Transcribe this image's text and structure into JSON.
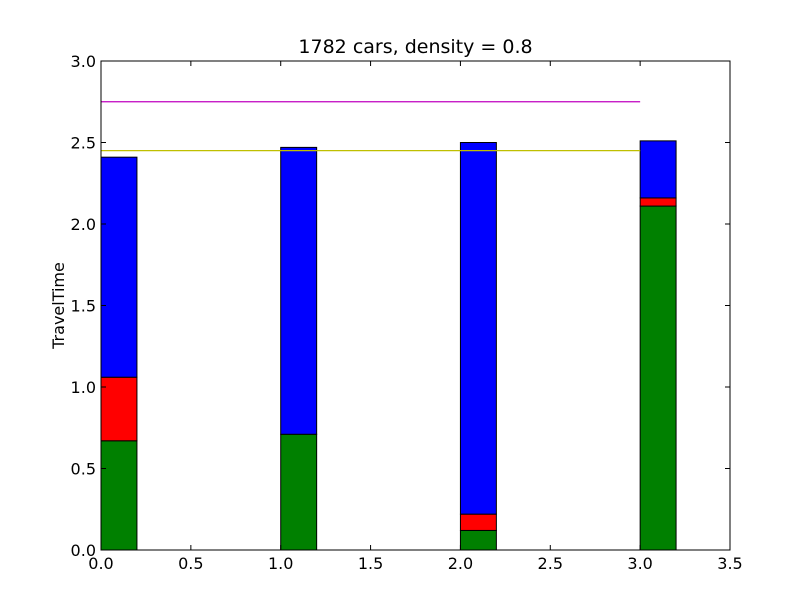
{
  "chart_data": {
    "type": "bar",
    "stacked": true,
    "title": "1782 cars, density = 0.8",
    "xlabel": "",
    "ylabel": "TravelTime",
    "xlim": [
      0.0,
      3.5
    ],
    "ylim": [
      0.0,
      3.0
    ],
    "xticks": [
      "0.0",
      "0.5",
      "1.0",
      "1.5",
      "2.0",
      "2.5",
      "3.0",
      "3.5"
    ],
    "yticks": [
      "0.0",
      "0.5",
      "1.0",
      "1.5",
      "2.0",
      "2.5",
      "3.0"
    ],
    "grid": false,
    "legend": "none",
    "bar_width": 0.2,
    "x": [
      0,
      1,
      2,
      3
    ],
    "series": [
      {
        "color": "#008000",
        "values": [
          0.67,
          0.71,
          0.12,
          2.11
        ]
      },
      {
        "color": "#ff0000",
        "values": [
          0.39,
          0.0,
          0.1,
          0.05
        ]
      },
      {
        "color": "#0000ff",
        "values": [
          1.35,
          1.76,
          2.28,
          0.35
        ]
      }
    ],
    "hlines": [
      {
        "y": 2.75,
        "x_from": 0.0,
        "x_to": 3.0,
        "color": "#bf00bf"
      },
      {
        "y": 2.45,
        "x_from": 0.0,
        "x_to": 3.0,
        "color": "#bfbf00"
      }
    ]
  }
}
